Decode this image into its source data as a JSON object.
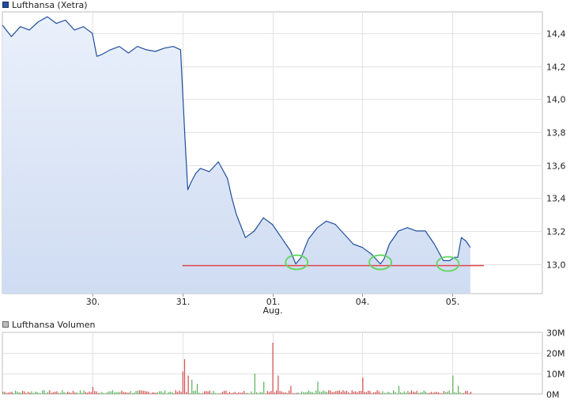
{
  "chart_data": [
    {
      "type": "area",
      "legend": "Lufthansa (Xetra)",
      "x_ticks": [
        "30.",
        "31.",
        "01.",
        "04.",
        "05."
      ],
      "x_sublabel": "Aug.",
      "y_ticks": [
        "13,0",
        "13,2",
        "13,4",
        "13,6",
        "13,8",
        "14,0",
        "14,2",
        "14,4"
      ],
      "ylim": [
        12.82,
        14.53
      ],
      "y_tick_values": [
        13.0,
        13.2,
        13.4,
        13.6,
        13.8,
        14.0,
        14.2,
        14.4
      ],
      "x_tick_positions": [
        1,
        2,
        3,
        4,
        5
      ],
      "xlim": [
        0,
        6
      ],
      "series": [
        {
          "x": [
            0.0,
            0.1,
            0.2,
            0.3,
            0.4,
            0.5,
            0.6,
            0.7,
            0.8,
            0.9,
            1.0,
            1.05,
            1.1,
            1.2,
            1.3,
            1.4,
            1.5,
            1.6,
            1.7,
            1.8,
            1.9,
            1.98,
            2.03,
            2.06,
            2.1,
            2.15,
            2.2,
            2.3,
            2.4,
            2.5,
            2.55,
            2.6,
            2.7,
            2.8,
            2.9,
            3.0,
            3.1,
            3.2,
            3.26,
            3.32,
            3.4,
            3.5,
            3.6,
            3.7,
            3.8,
            3.9,
            4.0,
            4.1,
            4.2,
            4.24,
            4.3,
            4.4,
            4.5,
            4.6,
            4.7,
            4.8,
            4.9,
            4.97,
            5.02,
            5.06,
            5.1,
            5.15,
            5.2
          ],
          "y": [
            14.45,
            14.38,
            14.44,
            14.42,
            14.47,
            14.5,
            14.46,
            14.48,
            14.42,
            14.44,
            14.4,
            14.26,
            14.27,
            14.3,
            14.32,
            14.28,
            14.32,
            14.3,
            14.29,
            14.31,
            14.32,
            14.3,
            13.75,
            13.45,
            13.5,
            13.55,
            13.58,
            13.56,
            13.62,
            13.52,
            13.4,
            13.3,
            13.16,
            13.2,
            13.28,
            13.24,
            13.16,
            13.08,
            13.0,
            13.04,
            13.15,
            13.22,
            13.26,
            13.24,
            13.18,
            13.12,
            13.1,
            13.06,
            13.0,
            13.03,
            13.12,
            13.2,
            13.22,
            13.2,
            13.2,
            13.12,
            13.02,
            13.02,
            13.04,
            13.04,
            13.16,
            13.14,
            13.1
          ],
          "color": "#1f4e9c"
        }
      ],
      "support_line": {
        "value": 12.99,
        "x_start": 2.0,
        "x_end": 5.35,
        "color": "#e0454a"
      },
      "annotations": [
        {
          "shape": "ellipse",
          "x": 3.27,
          "y": 13.01,
          "color": "#5dd65d"
        },
        {
          "shape": "ellipse",
          "x": 4.2,
          "y": 13.01,
          "color": "#5dd65d"
        },
        {
          "shape": "ellipse",
          "x": 4.95,
          "y": 13.0,
          "color": "#5dd65d"
        }
      ],
      "grid": true,
      "area_fill_top": "#eaf0fb",
      "area_fill_bottom": "#cfdcf2"
    },
    {
      "type": "bar",
      "legend": "Lufthansa Volumen",
      "y_ticks": [
        "0M",
        "10M",
        "20M",
        "30M"
      ],
      "y_tick_values": [
        0,
        10,
        20,
        30
      ],
      "ylim": [
        0,
        30
      ],
      "xlim": [
        0,
        6
      ],
      "spikes": [
        {
          "x": 1.0,
          "v": 3.5
        },
        {
          "x": 2.0,
          "v": 11
        },
        {
          "x": 2.03,
          "v": 17
        },
        {
          "x": 2.07,
          "v": 9
        },
        {
          "x": 2.1,
          "v": 7
        },
        {
          "x": 2.15,
          "v": 5
        },
        {
          "x": 2.8,
          "v": 10
        },
        {
          "x": 2.9,
          "v": 6
        },
        {
          "x": 3.0,
          "v": 25
        },
        {
          "x": 3.05,
          "v": 9
        },
        {
          "x": 3.2,
          "v": 4
        },
        {
          "x": 3.5,
          "v": 6
        },
        {
          "x": 4.0,
          "v": 8
        },
        {
          "x": 4.4,
          "v": 4
        },
        {
          "x": 5.0,
          "v": 9
        },
        {
          "x": 5.05,
          "v": 4
        }
      ],
      "up_color": "#58b058",
      "down_color": "#d64b4b"
    }
  ]
}
